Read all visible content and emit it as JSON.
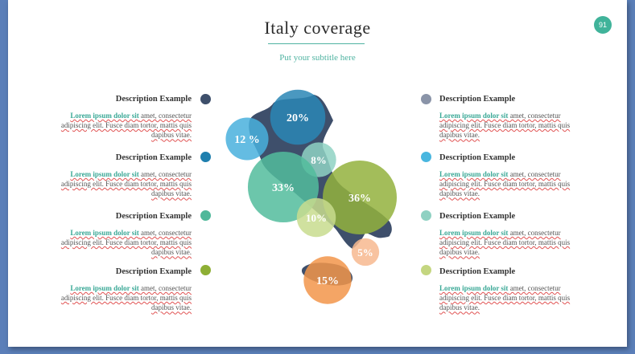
{
  "slide": {
    "title": "Italy coverage",
    "subtitle": "Put your subtitle here",
    "page_number": "91"
  },
  "colors": {
    "accent": "#40b39a",
    "map": "#3e4f6b",
    "bullets_left": [
      "#3e4f6b",
      "#1f7fae",
      "#4fb89a",
      "#8eaf35"
    ],
    "bullets_right": [
      "#8a94a8",
      "#49b6df",
      "#8fd1c2",
      "#c4d680"
    ]
  },
  "descriptions_left": [
    {
      "heading": "Description Example",
      "lead": "Lorem ipsum dolor sit",
      "text": " amet, consectetur adipiscing elit. Fusce diam tortor, mattis quis dapibus vitae."
    },
    {
      "heading": "Description Example",
      "lead": "Lorem ipsum dolor sit",
      "text": " amet, consectetur adipiscing elit. Fusce diam tortor, mattis quis dapibus vitae."
    },
    {
      "heading": "Description Example",
      "lead": "Lorem ipsum dolor sit",
      "text": " amet, consectetur adipiscing elit. Fusce diam tortor, mattis quis dapibus vitae."
    },
    {
      "heading": "Description Example",
      "lead": "Lorem ipsum dolor sit",
      "text": " amet, consectetur adipiscing elit. Fusce diam tortor, mattis quis dapibus vitae."
    }
  ],
  "descriptions_right": [
    {
      "heading": "Description Example",
      "lead": "Lorem ipsum dolor sit",
      "text": " amet, consectetur adipiscing elit. Fusce diam tortor, mattis quis dapibus vitae."
    },
    {
      "heading": "Description Example",
      "lead": "Lorem ipsum dolor sit",
      "text": " amet, consectetur adipiscing elit. Fusce diam tortor, mattis quis dapibus vitae."
    },
    {
      "heading": "Description Example",
      "lead": "Lorem ipsum dolor sit",
      "text": " amet, consectetur adipiscing elit. Fusce diam tortor, mattis quis dapibus vitae."
    },
    {
      "heading": "Description Example",
      "lead": "Lorem ipsum dolor sit",
      "text": " amet, consectetur adipiscing elit. Fusce diam tortor, mattis quis dapibus vitae."
    }
  ],
  "bubbles": [
    {
      "label": "20%",
      "value": 20,
      "color": "#2a86b5"
    },
    {
      "label": "12 %",
      "value": 12,
      "color": "#49b0dd"
    },
    {
      "label": "8%",
      "value": 8,
      "color": "#8fd2c3"
    },
    {
      "label": "33%",
      "value": 33,
      "color": "#52bc9c"
    },
    {
      "label": "36%",
      "value": 36,
      "color": "#93b13d"
    },
    {
      "label": "10%",
      "value": 10,
      "color": "#c8dc8e"
    },
    {
      "label": "5%",
      "value": 5,
      "color": "#f7b98f"
    },
    {
      "label": "15%",
      "value": 15,
      "color": "#f2954a"
    }
  ]
}
